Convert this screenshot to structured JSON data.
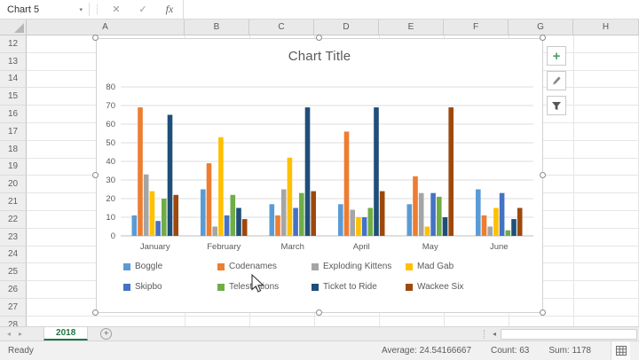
{
  "name_box": {
    "value": "Chart 5",
    "caret": "▾"
  },
  "formula_icons": {
    "cancel": "✕",
    "enter": "✓",
    "function": "fx"
  },
  "formula_bar": {
    "value": ""
  },
  "columns": [
    "A",
    "B",
    "C",
    "D",
    "E",
    "F",
    "G",
    "H"
  ],
  "rows": [
    "12",
    "13",
    "14",
    "15",
    "16",
    "17",
    "18",
    "19",
    "20",
    "21",
    "22",
    "23",
    "24",
    "25",
    "26",
    "27",
    "28"
  ],
  "chart_data": {
    "type": "bar",
    "title": "Chart Title",
    "categories": [
      "January",
      "February",
      "March",
      "April",
      "May",
      "June"
    ],
    "series": [
      {
        "name": "Boggle",
        "color": "#5B9BD5",
        "values": [
          11,
          25,
          17,
          17,
          17,
          25
        ]
      },
      {
        "name": "Codenames",
        "color": "#ED7D31",
        "values": [
          69,
          39,
          11,
          56,
          32,
          11
        ]
      },
      {
        "name": "Exploding Kittens",
        "color": "#A5A5A5",
        "values": [
          33,
          5,
          25,
          14,
          23,
          5
        ]
      },
      {
        "name": "Mad Gab",
        "color": "#FFC000",
        "values": [
          24,
          53,
          42,
          10,
          5,
          15
        ]
      },
      {
        "name": "Skipbo",
        "color": "#4472C4",
        "values": [
          8,
          11,
          15,
          10,
          23,
          23
        ]
      },
      {
        "name": "Telestrations",
        "color": "#70AD47",
        "values": [
          20,
          22,
          23,
          15,
          21,
          3
        ]
      },
      {
        "name": "Ticket to Ride",
        "color": "#1F4E79",
        "values": [
          65,
          15,
          69,
          69,
          10,
          9
        ]
      },
      {
        "name": "Wackee Six",
        "color": "#9E480E",
        "values": [
          22,
          9,
          24,
          24,
          69,
          15
        ]
      }
    ],
    "ylim": [
      0,
      80
    ],
    "ytick_step": 10,
    "grid": true,
    "legend_position": "bottom"
  },
  "chart_tools": [
    {
      "name": "chart-elements-button",
      "icon": "plus-icon",
      "glyph": "+"
    },
    {
      "name": "chart-styles-button",
      "icon": "brush-icon"
    },
    {
      "name": "chart-filters-button",
      "icon": "funnel-icon"
    }
  ],
  "tab_bar": {
    "nav_prev": "◂",
    "nav_next": "▸",
    "active_tab": "2018",
    "add_sheet": "+",
    "scroll_left_arrow": "◂"
  },
  "status_bar": {
    "mode": "Ready",
    "average": "Average: 24.54166667",
    "count": "Count: 63",
    "sum": "Sum: 1178"
  },
  "colors": {
    "excel_green": "#217346",
    "title_gray": "#595959",
    "gridline": "#dcdcdc",
    "axis_line": "#bfbfbf"
  }
}
